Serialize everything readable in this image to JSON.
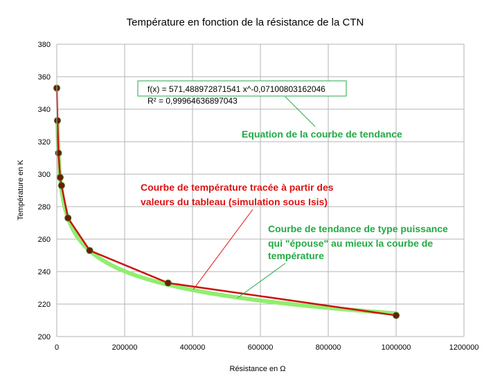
{
  "chart_data": {
    "type": "scatter",
    "title": "Température en fonction de la résistance de la CTN",
    "xlabel": "Résistance en Ω",
    "ylabel": "Température en K",
    "xlim": [
      0,
      1200000
    ],
    "ylim": [
      200,
      380
    ],
    "x_ticks": [
      "0",
      "200000",
      "400000",
      "600000",
      "800000",
      "1000000",
      "1200000"
    ],
    "y_ticks": [
      "200",
      "220",
      "240",
      "260",
      "280",
      "300",
      "320",
      "340",
      "360",
      "380"
    ],
    "grid": "vertical and horizontal major gridlines",
    "series": [
      {
        "kind": "measured",
        "color": "#cc1111",
        "marker_color": "#6b1a10",
        "x": [
          0,
          2000,
          5000,
          10000,
          14000,
          33000,
          97000,
          328000,
          1000000
        ],
        "y": [
          353,
          333,
          313,
          298,
          293,
          273,
          253,
          233,
          213
        ]
      },
      {
        "kind": "trend",
        "color": "#90ee70",
        "model": "power",
        "a": 571.488972871541,
        "b": -0.07100803162046
      }
    ],
    "trend_equation": {
      "line1": "f(x) = 571,488972871541 x^-0,07100803162046",
      "line2": "R² = 0,99964636897043"
    },
    "annotations": [
      {
        "text": "Equation de la courbe de tendance",
        "color": "#22aa44"
      },
      {
        "lines": [
          "Courbe de température tracée à partir des",
          "valeurs du tableau (simulation sous Isis)"
        ],
        "color": "#dd1111"
      },
      {
        "lines": [
          "Courbe de tendance de type puissance",
          "qui \"épouse\" au mieux la courbe de",
          "température"
        ],
        "color": "#22aa44"
      }
    ]
  }
}
